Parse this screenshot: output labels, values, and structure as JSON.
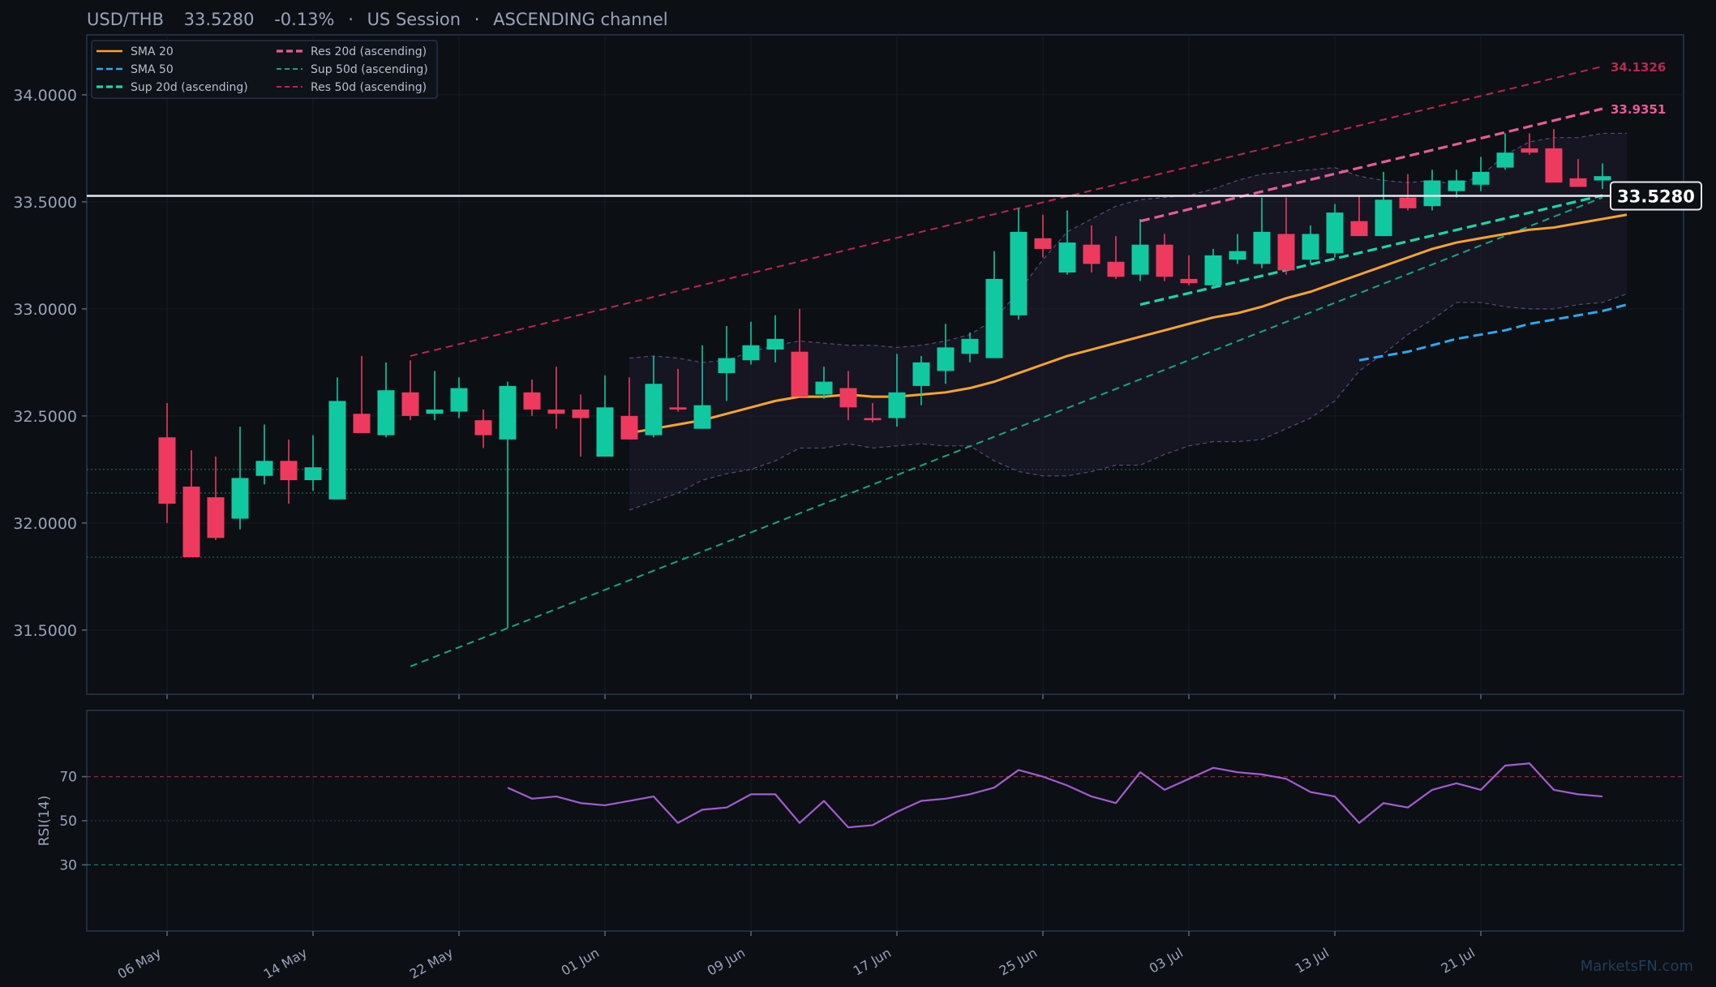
{
  "header": {
    "symbol": "USD/THB",
    "price": "33.5280",
    "change": "-0.13%",
    "session": "US Session",
    "channel": "ASCENDING channel",
    "sep": "·"
  },
  "watermark": "MarketsFN.com",
  "colors": {
    "background": "#0c0f14",
    "panel_border": "#24384f",
    "up": "#10c9a0",
    "down": "#ee3a5e",
    "sma20": "#f5a430",
    "sma50": "#2aa8ee",
    "res20": "#e75b98",
    "sup20": "#1dd6a8",
    "res50": "#b8284f",
    "sup50": "#17a877",
    "rsi": "#a45ccf",
    "bands": "#5a4a78",
    "text": "#9aa4b8"
  },
  "chart_data": {
    "type": "candlestick",
    "ylim": [
      31.2,
      34.28
    ],
    "yticks": [
      "31.5000",
      "32.0000",
      "32.5000",
      "33.0000",
      "33.5000",
      "34.0000"
    ],
    "ytick_values": [
      31.5,
      32.0,
      32.5,
      33.0,
      33.5,
      34.0
    ],
    "xticks": [
      {
        "label": "06 May",
        "i": 0
      },
      {
        "label": "14 May",
        "i": 6
      },
      {
        "label": "22 May",
        "i": 12
      },
      {
        "label": "01 Jun",
        "i": 18
      },
      {
        "label": "09 Jun",
        "i": 24
      },
      {
        "label": "17 Jun",
        "i": 30
      },
      {
        "label": "25 Jun",
        "i": 36
      },
      {
        "label": "03 Jul",
        "i": 42
      },
      {
        "label": "13 Jul",
        "i": 48
      },
      {
        "label": "21 Jul",
        "i": 54
      }
    ],
    "candles": [
      [
        32.4,
        32.56,
        32.0,
        32.09
      ],
      [
        32.17,
        32.34,
        31.84,
        31.84
      ],
      [
        32.12,
        32.31,
        31.92,
        31.93
      ],
      [
        32.02,
        32.45,
        31.97,
        32.21
      ],
      [
        32.22,
        32.46,
        32.18,
        32.29
      ],
      [
        32.29,
        32.39,
        32.09,
        32.2
      ],
      [
        32.2,
        32.41,
        32.15,
        32.26
      ],
      [
        32.11,
        32.68,
        32.11,
        32.57
      ],
      [
        32.51,
        32.78,
        32.42,
        32.42
      ],
      [
        32.41,
        32.75,
        32.4,
        32.62
      ],
      [
        32.61,
        32.76,
        32.48,
        32.5
      ],
      [
        32.51,
        32.71,
        32.48,
        32.53
      ],
      [
        32.52,
        32.68,
        32.49,
        32.63
      ],
      [
        32.48,
        32.53,
        32.35,
        32.41
      ],
      [
        32.39,
        32.66,
        31.51,
        32.64
      ],
      [
        32.61,
        32.67,
        32.5,
        32.53
      ],
      [
        32.53,
        32.73,
        32.44,
        32.51
      ],
      [
        32.53,
        32.6,
        32.31,
        32.49
      ],
      [
        32.31,
        32.69,
        32.31,
        32.54
      ],
      [
        32.5,
        32.68,
        32.39,
        32.39
      ],
      [
        32.41,
        32.78,
        32.4,
        32.65
      ],
      [
        32.54,
        32.72,
        32.52,
        32.53
      ],
      [
        32.44,
        32.83,
        32.44,
        32.55
      ],
      [
        32.7,
        32.92,
        32.57,
        32.77
      ],
      [
        32.76,
        32.94,
        32.74,
        32.83
      ],
      [
        32.81,
        32.97,
        32.75,
        32.86
      ],
      [
        32.8,
        33.0,
        32.59,
        32.59
      ],
      [
        32.6,
        32.73,
        32.58,
        32.66
      ],
      [
        32.63,
        32.71,
        32.48,
        32.54
      ],
      [
        32.49,
        32.56,
        32.47,
        32.48
      ],
      [
        32.49,
        32.79,
        32.45,
        32.61
      ],
      [
        32.64,
        32.78,
        32.55,
        32.75
      ],
      [
        32.71,
        32.93,
        32.65,
        32.82
      ],
      [
        32.79,
        32.89,
        32.75,
        32.86
      ],
      [
        32.77,
        33.27,
        32.77,
        33.14
      ],
      [
        32.97,
        33.47,
        32.95,
        33.36
      ],
      [
        33.33,
        33.44,
        33.24,
        33.28
      ],
      [
        33.17,
        33.46,
        33.16,
        33.31
      ],
      [
        33.3,
        33.39,
        33.17,
        33.21
      ],
      [
        33.22,
        33.34,
        33.14,
        33.15
      ],
      [
        33.16,
        33.42,
        33.13,
        33.3
      ],
      [
        33.3,
        33.35,
        33.13,
        33.15
      ],
      [
        33.14,
        33.25,
        33.11,
        33.12
      ],
      [
        33.11,
        33.28,
        33.1,
        33.25
      ],
      [
        33.23,
        33.35,
        33.21,
        33.27
      ],
      [
        33.21,
        33.52,
        33.19,
        33.36
      ],
      [
        33.35,
        33.52,
        33.16,
        33.18
      ],
      [
        33.23,
        33.39,
        33.21,
        33.35
      ],
      [
        33.26,
        33.49,
        33.24,
        33.45
      ],
      [
        33.41,
        33.53,
        33.34,
        33.34
      ],
      [
        33.34,
        33.64,
        33.34,
        33.51
      ],
      [
        33.52,
        33.63,
        33.46,
        33.47
      ],
      [
        33.48,
        33.65,
        33.46,
        33.6
      ],
      [
        33.55,
        33.65,
        33.52,
        33.6
      ],
      [
        33.58,
        33.71,
        33.55,
        33.64
      ],
      [
        33.66,
        33.82,
        33.65,
        33.73
      ],
      [
        33.75,
        33.82,
        33.72,
        33.73
      ],
      [
        33.75,
        33.84,
        33.59,
        33.59
      ],
      [
        33.61,
        33.7,
        33.57,
        33.57
      ],
      [
        33.6,
        33.68,
        33.56,
        33.62
      ]
    ],
    "candle_fields": [
      "open",
      "high",
      "low",
      "close"
    ],
    "sma20": {
      "start": 19,
      "values": [
        32.42,
        32.44,
        32.46,
        32.48,
        32.51,
        32.54,
        32.57,
        32.59,
        32.59,
        32.6,
        32.59,
        32.59,
        32.6,
        32.61,
        32.63,
        32.66,
        32.7,
        32.74,
        32.78,
        32.81,
        32.84,
        32.87,
        32.9,
        32.93,
        32.96,
        32.98,
        33.01,
        33.05,
        33.08,
        33.12,
        33.16,
        33.2,
        33.24,
        33.28,
        33.31,
        33.33,
        33.35,
        33.37,
        33.38,
        33.4,
        33.42,
        33.44
      ]
    },
    "sma50": {
      "start": 49,
      "values": [
        32.76,
        32.78,
        32.8,
        32.83,
        32.86,
        32.88,
        32.9,
        32.93,
        32.95,
        32.97,
        32.99,
        33.02
      ]
    },
    "bb_upper": {
      "start": 19,
      "values": [
        32.77,
        32.78,
        32.77,
        32.75,
        32.76,
        32.8,
        32.83,
        32.85,
        32.84,
        32.83,
        32.83,
        32.82,
        32.83,
        32.85,
        32.88,
        32.95,
        33.08,
        33.23,
        33.36,
        33.42,
        33.48,
        33.51,
        33.52,
        33.53,
        33.56,
        33.6,
        33.63,
        33.64,
        33.65,
        33.66,
        33.62,
        33.6,
        33.59,
        33.6,
        33.58,
        33.62,
        33.72,
        33.78,
        33.8,
        33.8,
        33.82,
        33.82
      ]
    },
    "bb_lower": {
      "start": 19,
      "values": [
        32.06,
        32.1,
        32.14,
        32.2,
        32.23,
        32.25,
        32.29,
        32.35,
        32.35,
        32.37,
        32.35,
        32.36,
        32.37,
        32.36,
        32.36,
        32.29,
        32.24,
        32.22,
        32.22,
        32.24,
        32.27,
        32.27,
        32.32,
        32.36,
        32.38,
        32.38,
        32.39,
        32.44,
        32.49,
        32.57,
        32.71,
        32.79,
        32.88,
        32.95,
        33.03,
        33.03,
        33.01,
        33.0,
        33.0,
        33.02,
        33.03,
        33.07
      ]
    },
    "channels": [
      {
        "name": "Res 20d (ascending)",
        "from_i": 40,
        "from_y": 33.41,
        "to_i": 59,
        "to_y": 33.9351,
        "label": "33.9351"
      },
      {
        "name": "Sup 20d (ascending)",
        "from_i": 40,
        "from_y": 33.02,
        "to_i": 59,
        "to_y": 33.53
      },
      {
        "name": "Res 50d (ascending)",
        "from_i": 10,
        "from_y": 32.78,
        "to_i": 59,
        "to_y": 34.1326,
        "label": "34.1326"
      },
      {
        "name": "Sup 50d (ascending)",
        "from_i": 10,
        "from_y": 31.33,
        "to_i": 59,
        "to_y": 33.52
      }
    ],
    "hlines": [
      32.25,
      32.14,
      31.84
    ],
    "last_price": 33.528,
    "last_price_label": "33.5280",
    "legend": [
      {
        "name": "SMA 20",
        "key": "sma20"
      },
      {
        "name": "SMA 50",
        "key": "sma50"
      },
      {
        "name": "Sup 20d (ascending)",
        "key": "sup20"
      },
      {
        "name": "Res 20d (ascending)",
        "key": "res20"
      },
      {
        "name": "Sup 50d (ascending)",
        "key": "sup50"
      },
      {
        "name": "Res 50d (ascending)",
        "key": "res50"
      }
    ],
    "rsi": {
      "label": "RSI(14)",
      "ylim": [
        0,
        100
      ],
      "levels": [
        70,
        50,
        30
      ],
      "level_labels": [
        "70",
        "50",
        "30"
      ],
      "start": 14,
      "values": [
        65,
        60,
        61,
        58,
        57,
        59,
        61,
        49,
        55,
        56,
        62,
        62,
        49,
        59,
        47,
        48,
        54,
        59,
        60,
        62,
        65,
        73,
        70,
        66,
        61,
        58,
        72,
        64,
        69,
        74,
        72,
        71,
        69,
        63,
        61,
        49,
        58,
        56,
        64,
        67,
        64,
        75,
        76,
        64,
        62,
        61
      ]
    }
  }
}
